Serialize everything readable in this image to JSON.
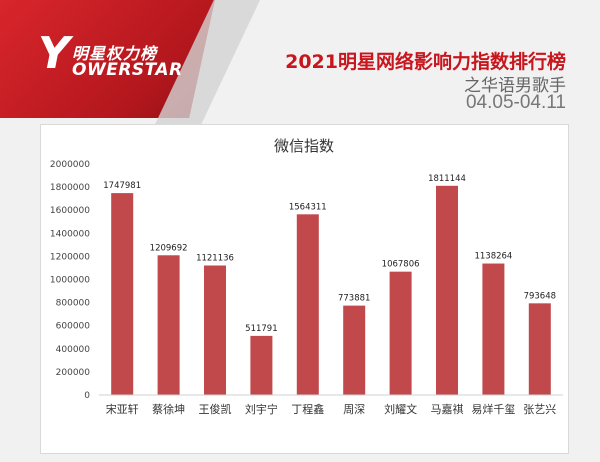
{
  "header": {
    "logo_cn": "明星权力榜",
    "logo_y": "Y",
    "logo_en": "OWERSTAR",
    "title": "2021明星网络影响力指数排行榜",
    "subtitle": "之华语男歌手",
    "date_range": "04.05-04.11"
  },
  "colors": {
    "bar": "#c1484b",
    "brand_red": "#c8161e"
  },
  "chart_data": {
    "type": "bar",
    "title": "微信指数",
    "xlabel": "",
    "ylabel": "",
    "categories": [
      "宋亚轩",
      "蔡徐坤",
      "王俊凯",
      "刘宇宁",
      "丁程鑫",
      "周深",
      "刘耀文",
      "马嘉祺",
      "易烊千玺",
      "张艺兴"
    ],
    "values": [
      1747981,
      1209692,
      1121136,
      511791,
      1564311,
      773881,
      1067806,
      1811144,
      1138264,
      793648
    ],
    "yticks": [
      "2000000",
      "1800000",
      "1600000",
      "1400000",
      "1200000",
      "1000000",
      "800000",
      "600000",
      "400000",
      "200000",
      "0"
    ],
    "ylim": [
      0,
      2000000
    ],
    "grid": false,
    "legend": "none"
  }
}
